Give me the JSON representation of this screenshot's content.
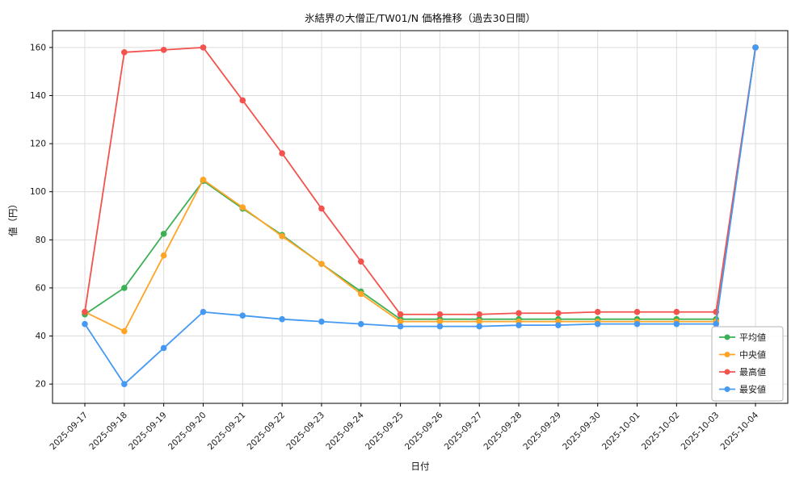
{
  "figure": {
    "title": "氷結界の大僧正/TW01/N 価格推移（過去30日間）",
    "xlabel": "日付",
    "ylabel": "値（円）"
  },
  "chart_data": {
    "type": "line",
    "title": "氷結界の大僧正/TW01/N 価格推移（過去30日間）",
    "xlabel": "日付",
    "ylabel": "値（円）",
    "x": [
      "2025-09-17",
      "2025-09-18",
      "2025-09-19",
      "2025-09-20",
      "2025-09-21",
      "2025-09-22",
      "2025-09-23",
      "2025-09-24",
      "2025-09-25",
      "2025-09-26",
      "2025-09-27",
      "2025-09-28",
      "2025-09-29",
      "2025-09-30",
      "2025-10-01",
      "2025-10-02",
      "2025-10-03",
      "2025-10-04"
    ],
    "yticks": [
      20,
      40,
      60,
      80,
      100,
      120,
      140,
      160
    ],
    "ylim": [
      12,
      167
    ],
    "grid": true,
    "legend_position": "lower-right",
    "series": [
      {
        "name": "平均値",
        "color": "#3cb054",
        "values": [
          49,
          60,
          82.5,
          104.5,
          93,
          82,
          70,
          58.5,
          47,
          47,
          47,
          47,
          47,
          47,
          47,
          47,
          47,
          160
        ]
      },
      {
        "name": "中央値",
        "color": "#ffa426",
        "values": [
          50,
          42,
          73.5,
          105,
          93.5,
          81.5,
          70,
          57.5,
          46,
          46,
          46,
          46,
          46,
          46,
          46,
          46,
          46,
          160
        ]
      },
      {
        "name": "最高値",
        "color": "#f4524d",
        "values": [
          50,
          158,
          159,
          160,
          138,
          116,
          93,
          71,
          49,
          49,
          49,
          49.5,
          49.5,
          50,
          50,
          50,
          50,
          160
        ]
      },
      {
        "name": "最安値",
        "color": "#4499f3",
        "values": [
          45,
          20,
          35,
          50,
          48.5,
          47,
          46,
          45,
          44,
          44,
          44,
          44.5,
          44.5,
          45,
          45,
          45,
          45,
          160
        ]
      }
    ],
    "colors": {
      "grid": "#dcdcdc",
      "axis": "#000000",
      "text": "#1a1a1a",
      "legend_border": "#b3b3b3"
    }
  }
}
